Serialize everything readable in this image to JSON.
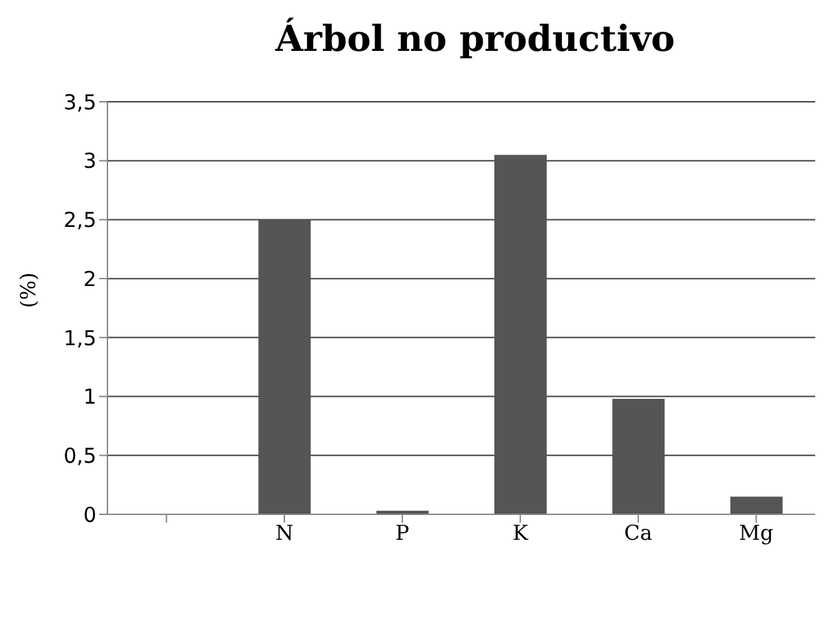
{
  "chart_data": {
    "type": "bar",
    "title": "Árbol no productivo",
    "ylabel": "(%)",
    "categories": [
      null,
      "N",
      "P",
      "K",
      "Ca",
      "Mg"
    ],
    "values": [
      null,
      2.5,
      0.03,
      3.05,
      0.98,
      0.15
    ],
    "color": "#555555",
    "ylim": [
      0,
      3.5
    ],
    "yticks": [
      0,
      {
        "value": 0.5,
        "label": "0,5"
      },
      1,
      {
        "value": 1.5,
        "label": "1,5"
      },
      2,
      {
        "value": 2.5,
        "label": "2,5"
      },
      3,
      {
        "value": 3.5,
        "label": "3,5"
      }
    ],
    "grid": "y"
  }
}
